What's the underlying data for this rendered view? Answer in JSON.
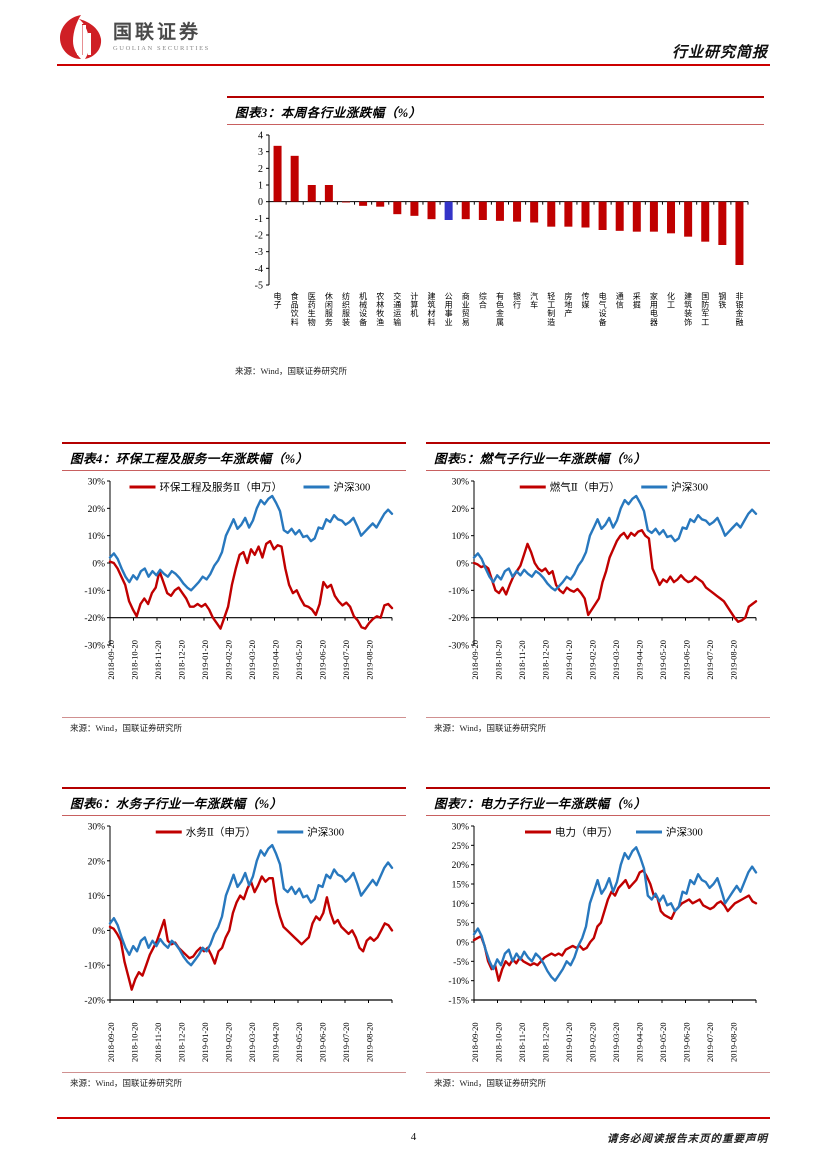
{
  "header": {
    "brand_cn": "国联证券",
    "brand_en": "GUOLIAN SECURITIES",
    "report_type": "行业研究简报"
  },
  "footer": {
    "page_number": "4",
    "disclaimer": "请务必阅读报告末页的重要声明"
  },
  "colors": {
    "accent_red": "#cc0000",
    "series_red": "#c00000",
    "series_blue": "#2878be",
    "bar_highlight_blue": "#3434c8",
    "axis_black": "#000000"
  },
  "chart_data": [
    {
      "id": "fig3",
      "type": "bar",
      "title": "图表3：本周各行业涨跌幅（%）",
      "source": "来源：Wind，国联证券研究所",
      "ylim": [
        -5,
        4
      ],
      "yticks": [
        4,
        3,
        2,
        1,
        0,
        -1,
        -2,
        -3,
        -4,
        -5
      ],
      "grid": false,
      "categories": [
        "电子",
        "食品饮料",
        "医药生物",
        "休闲服务",
        "纺织服装",
        "机械设备",
        "农林牧渔",
        "交通运输",
        "计算机",
        "建筑材料",
        "公用事业",
        "商业贸易",
        "综合",
        "有色金属",
        "银行",
        "汽车",
        "轻工制造",
        "房地产",
        "传媒",
        "电气设备",
        "通信",
        "采掘",
        "家用电器",
        "化工",
        "建筑装饰",
        "国防军工",
        "钢铁",
        "非银金融"
      ],
      "values": [
        3.35,
        2.75,
        1.0,
        1.0,
        -0.05,
        -0.25,
        -0.3,
        -0.75,
        -0.85,
        -1.05,
        -1.1,
        -1.05,
        -1.1,
        -1.15,
        -1.2,
        -1.25,
        -1.5,
        -1.5,
        -1.55,
        -1.7,
        -1.75,
        -1.8,
        -1.8,
        -1.9,
        -2.1,
        -2.4,
        -2.6,
        -3.8
      ],
      "bar_color": "#c00000",
      "highlight_index": 10,
      "highlight_color": "#3434c8"
    },
    {
      "id": "fig4",
      "type": "line",
      "title": "图表4：环保工程及服务一年涨跌幅（%）",
      "source": "来源：Wind，国联证券研究所",
      "ylim": [
        -30,
        30
      ],
      "yticks": [
        30,
        20,
        10,
        0,
        -10,
        -20,
        -30
      ],
      "ytick_suffix": "%",
      "axis_cross": -20,
      "grid": false,
      "legend_position": "top",
      "x_labels": [
        "2018-09-20",
        "2018-10-20",
        "2018-11-20",
        "2018-12-20",
        "2019-01-20",
        "2019-02-20",
        "2019-03-20",
        "2019-04-20",
        "2019-05-20",
        "2019-06-20",
        "2019-07-20",
        "2019-08-20"
      ],
      "series": [
        {
          "name": "环保工程及服务Ⅱ（申万）",
          "color": "#c00000",
          "values": [
            0.5,
            0,
            -2,
            -5,
            -8,
            -14,
            -17,
            -19.5,
            -15,
            -13,
            -15,
            -11,
            -9,
            -3,
            -7,
            -11,
            -12,
            -10,
            -9,
            -11,
            -13,
            -16,
            -16,
            -15,
            -16,
            -15,
            -17,
            -20,
            -22,
            -24,
            -20,
            -16,
            -8,
            -2,
            3,
            4,
            0,
            5,
            3,
            6,
            2,
            7,
            8,
            5,
            6.5,
            6,
            -2,
            -8,
            -11,
            -10,
            -13,
            -15.5,
            -16,
            -17,
            -19,
            -15,
            -7,
            -9,
            -8,
            -12,
            -14,
            -15.5,
            -14.5,
            -16,
            -19.5,
            -21,
            -23.5,
            -24,
            -22,
            -20.5,
            -19.5,
            -20,
            -15.5,
            -15,
            -16.5
          ]
        },
        {
          "name": "沪深300",
          "color": "#2878be",
          "values": [
            2,
            3.5,
            1.5,
            -2,
            -5,
            -7,
            -4.5,
            -6,
            -3,
            -2,
            -5,
            -3,
            -4.5,
            -2.5,
            -4,
            -5,
            -3,
            -4,
            -5.5,
            -7.5,
            -9,
            -10,
            -8.5,
            -7,
            -5,
            -6,
            -4,
            -1,
            1,
            4,
            10,
            13,
            16,
            12.5,
            14,
            16.5,
            13,
            15.5,
            20,
            23,
            21.5,
            23.5,
            24.5,
            22,
            19,
            12,
            11,
            12.5,
            10.5,
            12,
            9.5,
            10,
            8,
            9,
            13,
            12.5,
            16,
            15,
            17.5,
            16,
            15.5,
            14,
            15,
            16.5,
            13.5,
            10,
            11.5,
            13,
            14.5,
            13,
            15.5,
            18,
            19.5,
            18
          ]
        }
      ]
    },
    {
      "id": "fig5",
      "type": "line",
      "title": "图表5：燃气子行业一年涨跌幅（%）",
      "source": "来源：Wind，国联证券研究所",
      "ylim": [
        -30,
        30
      ],
      "yticks": [
        30,
        20,
        10,
        0,
        -10,
        -20,
        -30
      ],
      "ytick_suffix": "%",
      "axis_cross": -20,
      "grid": false,
      "legend_position": "top",
      "x_labels": [
        "2018-09-20",
        "2018-10-20",
        "2018-11-20",
        "2018-12-20",
        "2019-01-20",
        "2019-02-20",
        "2019-03-20",
        "2019-04-20",
        "2019-05-20",
        "2019-06-20",
        "2019-07-20",
        "2019-08-20"
      ],
      "series": [
        {
          "name": "燃气Ⅱ（申万）",
          "color": "#c00000",
          "values": [
            0,
            -0.5,
            -1.5,
            -1,
            -2,
            -6,
            -10,
            -11,
            -9,
            -11.5,
            -8,
            -5,
            -3,
            -1,
            3,
            7,
            4,
            0,
            -2,
            -3,
            -2,
            -4,
            -3,
            -8,
            -10,
            -11,
            -9,
            -10,
            -10.5,
            -9.5,
            -11,
            -13,
            -19,
            -17,
            -15,
            -13,
            -7,
            -3,
            2,
            5,
            8,
            10,
            11,
            9,
            11,
            10,
            11.5,
            12,
            10,
            9,
            -2,
            -5,
            -8,
            -6,
            -7,
            -5,
            -7,
            -6,
            -4.5,
            -6,
            -7,
            -6.5,
            -5,
            -6,
            -7,
            -9,
            -10,
            -11,
            -12,
            -13,
            -14,
            -16,
            -18,
            -20,
            -21.5,
            -21,
            -20,
            -16,
            -15,
            -14
          ]
        },
        {
          "name": "沪深300",
          "color": "#2878be",
          "values": [
            2,
            3.5,
            1.5,
            -2,
            -5,
            -7,
            -4.5,
            -6,
            -3,
            -2,
            -5,
            -3,
            -4.5,
            -2.5,
            -4,
            -5,
            -3,
            -4,
            -5.5,
            -7.5,
            -9,
            -10,
            -8.5,
            -7,
            -5,
            -6,
            -4,
            -1,
            1,
            4,
            10,
            13,
            16,
            12.5,
            14,
            16.5,
            13,
            15.5,
            20,
            23,
            21.5,
            23.5,
            24.5,
            22,
            19,
            12,
            11,
            12.5,
            10.5,
            12,
            9.5,
            10,
            8,
            9,
            13,
            12.5,
            16,
            15,
            17.5,
            16,
            15.5,
            14,
            15,
            16.5,
            13.5,
            10,
            11.5,
            13,
            14.5,
            13,
            15.5,
            18,
            19.5,
            18
          ]
        }
      ]
    },
    {
      "id": "fig6",
      "type": "line",
      "title": "图表6：水务子行业一年涨跌幅（%）",
      "source": "来源：Wind，国联证券研究所",
      "ylim": [
        -20,
        30
      ],
      "yticks": [
        30,
        20,
        10,
        0,
        -10,
        -20
      ],
      "ytick_suffix": "%",
      "axis_cross": -20,
      "grid": false,
      "legend_position": "top",
      "x_labels": [
        "2018-09-20",
        "2018-10-20",
        "2018-11-20",
        "2018-12-20",
        "2019-01-20",
        "2019-02-20",
        "2019-03-20",
        "2019-04-20",
        "2019-05-20",
        "2019-06-20",
        "2019-07-20",
        "2019-08-20"
      ],
      "series": [
        {
          "name": "水务Ⅱ（申万）",
          "color": "#c00000",
          "values": [
            1,
            0.5,
            -1,
            -3,
            -9,
            -13,
            -17,
            -14,
            -12,
            -13,
            -10,
            -7,
            -5,
            -3,
            0,
            3,
            -3,
            -4,
            -3.5,
            -5,
            -6,
            -7,
            -8,
            -7.5,
            -6,
            -5,
            -6,
            -5,
            -7,
            -9.5,
            -6,
            -5,
            -2,
            0,
            5,
            8,
            10,
            9,
            12,
            14,
            11,
            13,
            15.5,
            14,
            15,
            15,
            8,
            4,
            1,
            0,
            -1,
            -2,
            -3,
            -4,
            -3,
            -2,
            2,
            4,
            3,
            5,
            9.5,
            5,
            2,
            3,
            1,
            0,
            -1,
            0,
            -2,
            -5,
            -6,
            -3,
            -2,
            -3,
            -2,
            0,
            2,
            1.5,
            0
          ]
        },
        {
          "name": "沪深300",
          "color": "#2878be",
          "values": [
            2,
            3.5,
            1.5,
            -2,
            -5,
            -7,
            -4.5,
            -6,
            -3,
            -2,
            -5,
            -3,
            -4.5,
            -2.5,
            -4,
            -5,
            -3,
            -4,
            -5.5,
            -7.5,
            -9,
            -10,
            -8.5,
            -7,
            -5,
            -6,
            -4,
            -1,
            1,
            4,
            10,
            13,
            16,
            12.5,
            14,
            16.5,
            13,
            15.5,
            20,
            23,
            21.5,
            23.5,
            24.5,
            22,
            19,
            12,
            11,
            12.5,
            10.5,
            12,
            9.5,
            10,
            8,
            9,
            13,
            12.5,
            16,
            15,
            17.5,
            16,
            15.5,
            14,
            15,
            16.5,
            13.5,
            10,
            11.5,
            13,
            14.5,
            13,
            15.5,
            18,
            19.5,
            18
          ]
        }
      ]
    },
    {
      "id": "fig7",
      "type": "line",
      "title": "图表7：电力子行业一年涨跌幅（%）",
      "source": "来源：Wind，国联证券研究所",
      "ylim": [
        -15,
        30
      ],
      "yticks": [
        30,
        25,
        20,
        15,
        10,
        5,
        0,
        -5,
        -10,
        -15
      ],
      "ytick_suffix": "%",
      "axis_cross": -15,
      "grid": false,
      "legend_position": "top",
      "x_labels": [
        "2018-09-20",
        "2018-10-20",
        "2018-11-20",
        "2018-12-20",
        "2019-01-20",
        "2019-02-20",
        "2019-03-20",
        "2019-04-20",
        "2019-05-20",
        "2019-06-20",
        "2019-07-20",
        "2019-08-20"
      ],
      "series": [
        {
          "name": "电力（申万）",
          "color": "#c00000",
          "values": [
            0.5,
            1,
            1.5,
            -1,
            -5,
            -7,
            -6,
            -10,
            -7,
            -5,
            -6,
            -4.5,
            -5.5,
            -4,
            -5,
            -5.5,
            -6,
            -5.5,
            -6,
            -5,
            -4,
            -3.5,
            -3,
            -3.5,
            -3,
            -3.5,
            -2,
            -1.5,
            -1,
            -1.5,
            -1,
            -2,
            -1.5,
            0,
            1,
            4,
            5,
            8,
            11,
            13,
            12,
            14,
            15,
            16,
            14,
            15,
            16,
            18,
            18.5,
            17,
            15,
            12,
            11.5,
            8,
            7,
            6.5,
            6,
            8,
            9,
            10,
            10.5,
            11,
            10,
            10.5,
            11,
            9.5,
            9,
            8.5,
            9,
            10,
            10.5,
            9.5,
            8,
            9,
            10,
            10.5,
            11,
            11.5,
            12,
            10.5,
            10
          ]
        },
        {
          "name": "沪深300",
          "color": "#2878be",
          "values": [
            2,
            3.5,
            1.5,
            -2,
            -5,
            -7,
            -4.5,
            -6,
            -3,
            -2,
            -5,
            -3,
            -4.5,
            -2.5,
            -4,
            -5,
            -3,
            -4,
            -5.5,
            -7.5,
            -9,
            -10,
            -8.5,
            -7,
            -5,
            -6,
            -4,
            -1,
            1,
            4,
            10,
            13,
            16,
            12.5,
            14,
            16.5,
            13,
            15.5,
            20,
            23,
            21.5,
            23.5,
            24.5,
            22,
            19,
            12,
            11,
            12.5,
            10.5,
            12,
            9.5,
            10,
            8,
            9,
            13,
            12.5,
            16,
            15,
            17.5,
            16,
            15.5,
            14,
            15,
            16.5,
            13.5,
            10,
            11.5,
            13,
            14.5,
            13,
            15.5,
            18,
            19.5,
            18
          ]
        }
      ]
    }
  ]
}
